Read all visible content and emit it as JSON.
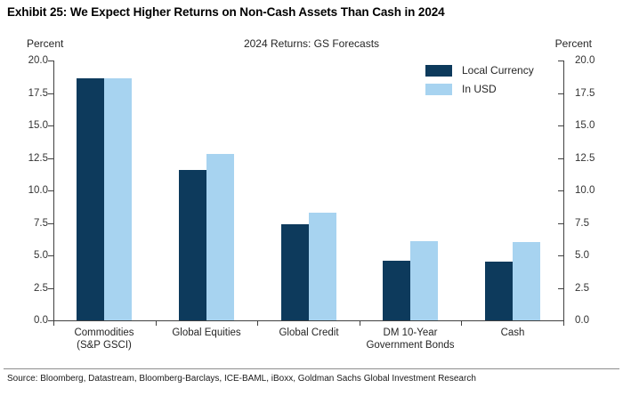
{
  "title": "Exhibit 25: We Expect Higher Returns on Non-Cash Assets Than Cash in 2024",
  "subtitle": "2024 Returns: GS Forecasts",
  "axes": {
    "percent_left": "Percent",
    "percent_right": "Percent"
  },
  "legend": [
    {
      "label": "Local Currency",
      "color": "#0d3a5c"
    },
    {
      "label": "In USD",
      "color": "#a7d3f0"
    }
  ],
  "colors": {
    "local_currency": "#0d3a5c",
    "in_usd": "#a7d3f0",
    "axis": "#404040",
    "tick_text": "#333333"
  },
  "source": "Source: Bloomberg, Datastream, Bloomberg-Barclays, ICE-BAML, iBoxx, Goldman Sachs Global Investment Research",
  "chart_data": {
    "type": "bar",
    "title": "2024 Returns: GS Forecasts",
    "categories": [
      "Commodities\n(S&P GSCI)",
      "Global Equities",
      "Global Credit",
      "DM 10-Year\nGovernment Bonds",
      "Cash"
    ],
    "series": [
      {
        "name": "Local Currency",
        "color": "#0d3a5c",
        "values": [
          18.6,
          11.6,
          7.4,
          4.6,
          4.5
        ]
      },
      {
        "name": "In USD",
        "color": "#a7d3f0",
        "values": [
          18.6,
          12.8,
          8.3,
          6.1,
          6.0
        ]
      }
    ],
    "xlabel": "",
    "ylabel": "Percent",
    "ylim": [
      0,
      20
    ],
    "yticks": [
      0,
      2.5,
      5,
      7.5,
      10,
      12.5,
      15,
      17.5,
      20
    ],
    "ytick_labels": [
      "0.0",
      "2.5",
      "5.0",
      "7.5",
      "10.0",
      "12.5",
      "15.0",
      "17.5",
      "20.0"
    ],
    "grid": false,
    "legend_position": "upper right",
    "dual_axis_labels": true
  }
}
